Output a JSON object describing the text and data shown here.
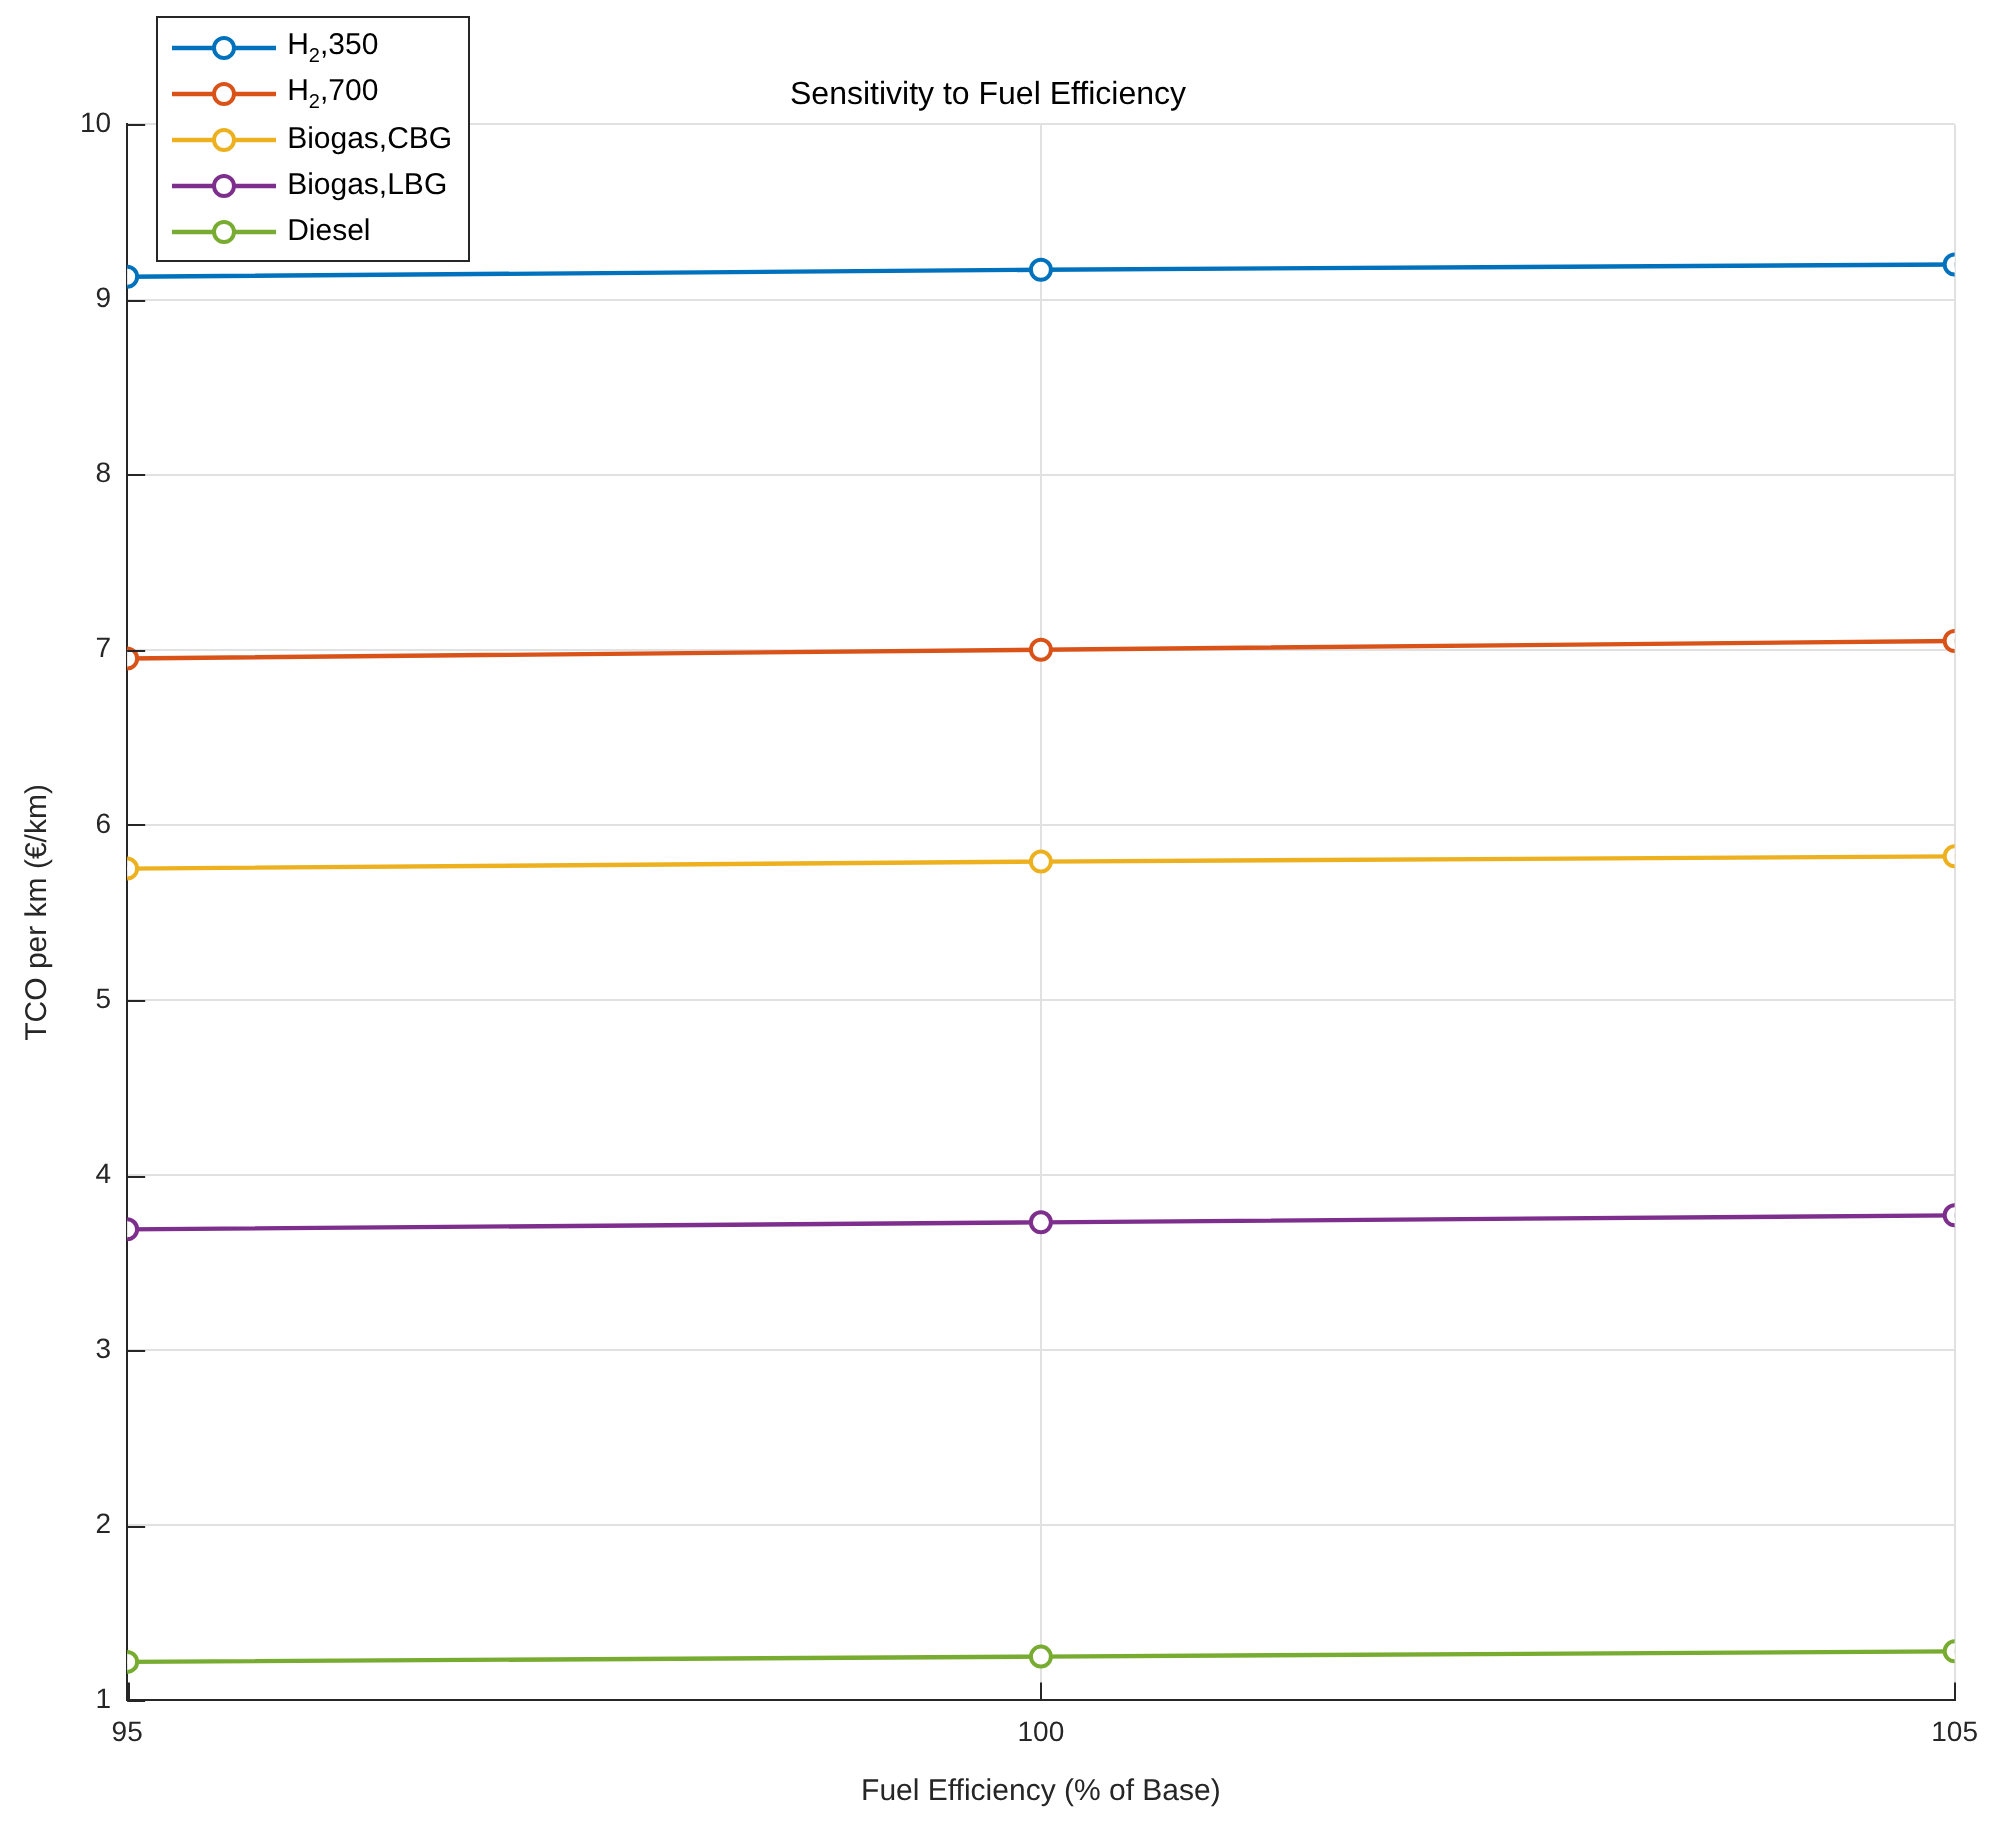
{
  "chart_data": {
    "type": "line",
    "title": "Sensitivity to Fuel Efficiency",
    "xlabel": "Fuel Efficiency (% of Base)",
    "ylabel": "TCO per km (€/km)",
    "x": [
      95,
      100,
      105
    ],
    "xlim": [
      95,
      105
    ],
    "xticks": [
      95,
      100,
      105
    ],
    "ylim": [
      1,
      10
    ],
    "yticks": [
      1,
      2,
      3,
      4,
      5,
      6,
      7,
      8,
      9,
      10
    ],
    "grid": true,
    "legend": "top left",
    "marker": "circle",
    "line_style": "solid",
    "series": [
      {
        "name": "H$_{2}$,350",
        "color": "#0072bd",
        "values": [
          9.13,
          9.17,
          9.2
        ]
      },
      {
        "name": "H$_{2}$,700",
        "color": "#d95319",
        "values": [
          6.95,
          7.0,
          7.05
        ]
      },
      {
        "name": "Biogas,CBG",
        "color": "#edb120",
        "values": [
          5.75,
          5.79,
          5.82
        ]
      },
      {
        "name": "Biogas,LBG",
        "color": "#7e2f8e",
        "values": [
          3.69,
          3.73,
          3.77
        ]
      },
      {
        "name": "Diesel",
        "color": "#77ac30",
        "values": [
          1.22,
          1.25,
          1.28
        ]
      }
    ]
  }
}
